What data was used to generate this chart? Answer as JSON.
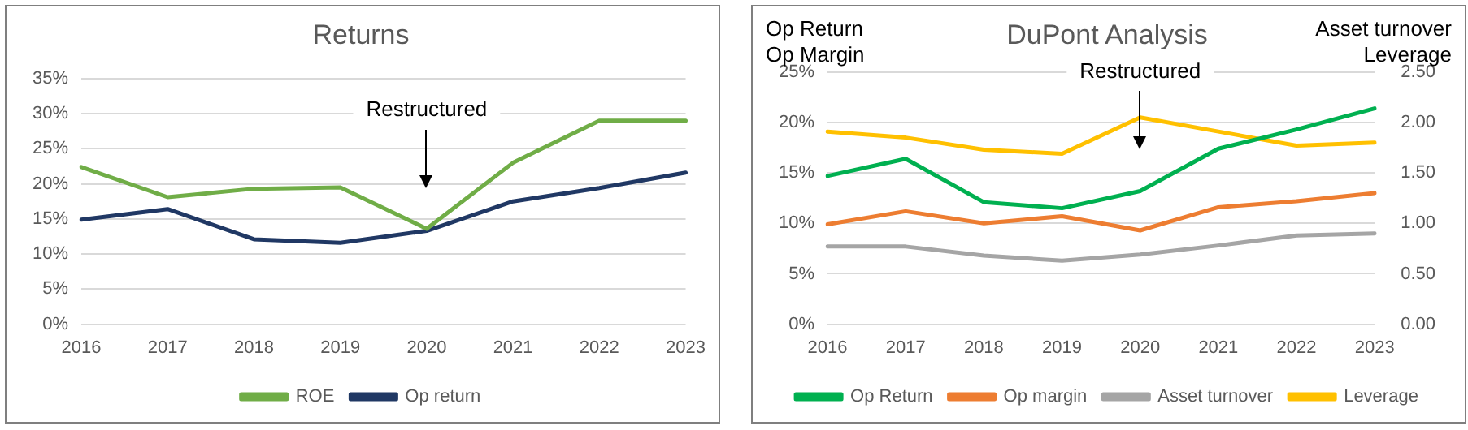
{
  "chart_data": [
    {
      "type": "line",
      "title": "Returns",
      "categories": [
        "2016",
        "2017",
        "2018",
        "2019",
        "2020",
        "2021",
        "2022",
        "2023"
      ],
      "series": [
        {
          "name": "ROE",
          "color": "#70ad47",
          "values": [
            22.4,
            18.1,
            19.3,
            19.5,
            13.6,
            23.0,
            29.0,
            29.0
          ]
        },
        {
          "name": "Op return",
          "color": "#203864",
          "values": [
            14.9,
            16.4,
            12.1,
            11.6,
            13.3,
            17.5,
            19.4,
            21.6
          ]
        }
      ],
      "ylim": [
        0,
        35
      ],
      "yticks": [
        {
          "value": 0,
          "label": "0%"
        },
        {
          "value": 5,
          "label": "5%"
        },
        {
          "value": 10,
          "label": "10%"
        },
        {
          "value": 15,
          "label": "15%"
        },
        {
          "value": 20,
          "label": "20%"
        },
        {
          "value": 25,
          "label": "25%"
        },
        {
          "value": 30,
          "label": "30%"
        },
        {
          "value": 35,
          "label": "35%"
        }
      ],
      "grid": "y",
      "legend": "bottom",
      "marker": "none",
      "line_style": "solid",
      "annotations": [
        "Restructured"
      ]
    },
    {
      "type": "line",
      "title": "DuPont Analysis",
      "ylabel": "Op Return\nOp Margin",
      "y2label": "Asset turnover\nLeverage",
      "categories": [
        "2016",
        "2017",
        "2018",
        "2019",
        "2020",
        "2021",
        "2022",
        "2023"
      ],
      "series": [
        {
          "name": "Op Return",
          "color": "#00b050",
          "values": [
            14.7,
            16.4,
            12.1,
            11.5,
            13.2,
            17.4,
            19.3,
            21.4
          ]
        },
        {
          "name": "Op margin",
          "color": "#ed7d31",
          "values": [
            9.9,
            11.2,
            10.0,
            10.7,
            9.3,
            11.6,
            12.2,
            13.0
          ]
        },
        {
          "name": "Asset turnover",
          "color": "#a5a5a5",
          "axis": "y2",
          "values": [
            0.77,
            0.77,
            0.68,
            0.63,
            0.69,
            0.78,
            0.88,
            0.9
          ]
        },
        {
          "name": "Leverage",
          "color": "#ffc000",
          "axis": "y2",
          "values": [
            1.91,
            1.85,
            1.73,
            1.69,
            2.05,
            1.91,
            1.77,
            1.8
          ]
        }
      ],
      "ylim": [
        0,
        25
      ],
      "yticks": [
        {
          "value": 0,
          "label": "0%"
        },
        {
          "value": 5,
          "label": "5%"
        },
        {
          "value": 10,
          "label": "10%"
        },
        {
          "value": 15,
          "label": "15%"
        },
        {
          "value": 20,
          "label": "20%"
        },
        {
          "value": 25,
          "label": "25%"
        }
      ],
      "y2lim": [
        0,
        2.5
      ],
      "y2ticks": [
        {
          "value": 0,
          "label": "0.00"
        },
        {
          "value": 0.5,
          "label": "0.50"
        },
        {
          "value": 1,
          "label": "1.00"
        },
        {
          "value": 1.5,
          "label": "1.50"
        },
        {
          "value": 2,
          "label": "2.00"
        },
        {
          "value": 2.5,
          "label": "2.50"
        }
      ],
      "grid": "y",
      "legend": "bottom",
      "marker": "none",
      "line_style": "solid",
      "annotations": [
        "Restructured"
      ]
    }
  ]
}
